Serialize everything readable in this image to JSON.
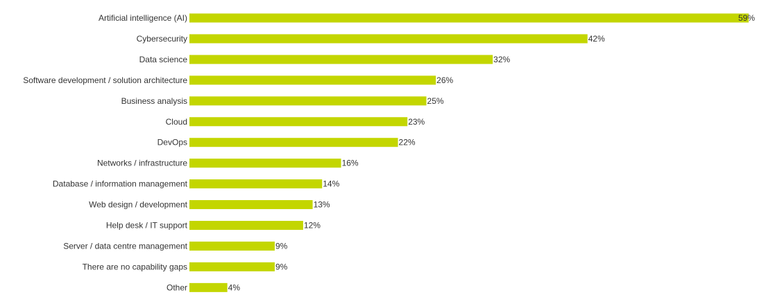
{
  "chart_data": {
    "type": "bar",
    "orientation": "horizontal",
    "title": "",
    "xlabel": "",
    "ylabel": "",
    "grid": false,
    "legend": "none",
    "bar_color": "#c3d600",
    "unit_suffix": "%",
    "xlim": [
      0,
      59
    ],
    "categories": [
      "Artificial intelligence (AI)",
      "Cybersecurity",
      "Data science",
      "Software development / solution architecture",
      "Business analysis",
      "Cloud",
      "DevOps",
      "Networks / infrastructure",
      "Database / information management",
      "Web design / development",
      "Help desk / IT support",
      "Server / data centre management",
      "There are no capability gaps",
      "Other"
    ],
    "values": [
      59,
      42,
      32,
      26,
      25,
      23,
      22,
      16,
      14,
      13,
      12,
      9,
      9,
      4
    ]
  }
}
